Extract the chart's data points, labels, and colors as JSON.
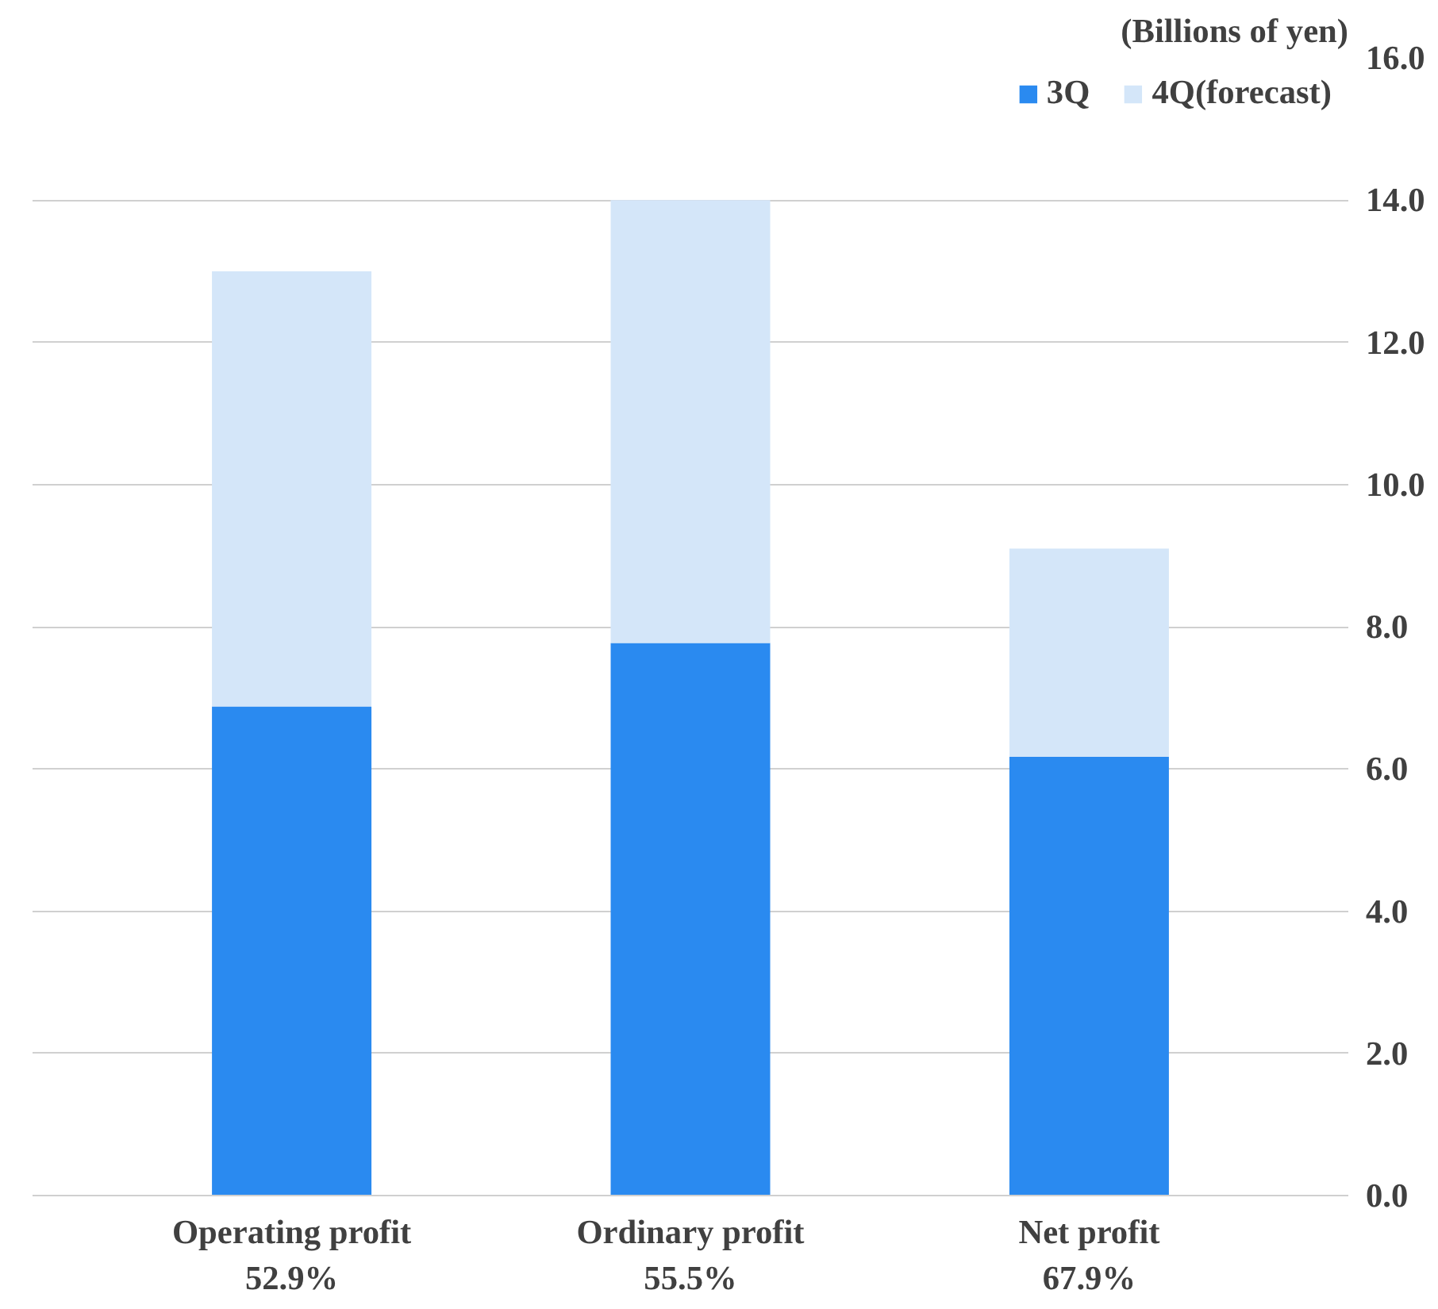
{
  "chart_data": {
    "type": "bar",
    "stacked": true,
    "ylabel": "(Billions of yen)",
    "categories": [
      "Operating profit",
      "Ordinary profit",
      "Net profit"
    ],
    "series": [
      {
        "name": "3Q",
        "color": "#2a8af0",
        "values": [
          6.88,
          7.77,
          6.17
        ]
      },
      {
        "name": "4Q(forecast)",
        "color": "#d4e6f9",
        "values": [
          6.12,
          6.23,
          2.93
        ]
      }
    ],
    "annotations": [
      "52.9%",
      "55.5%",
      "67.9%"
    ],
    "ylim": [
      0,
      16
    ],
    "yticks": [
      {
        "value": 0,
        "label": "0.0"
      },
      {
        "value": 2,
        "label": "2.0"
      },
      {
        "value": 4,
        "label": "4.0"
      },
      {
        "value": 6,
        "label": "6.0"
      },
      {
        "value": 8,
        "label": "8.0"
      },
      {
        "value": 10,
        "label": "10.0"
      },
      {
        "value": 12,
        "label": "12.0"
      },
      {
        "value": 14,
        "label": "14.0"
      },
      {
        "value": 16,
        "label": "16.0"
      }
    ],
    "grid": "y",
    "legend": "top right"
  }
}
